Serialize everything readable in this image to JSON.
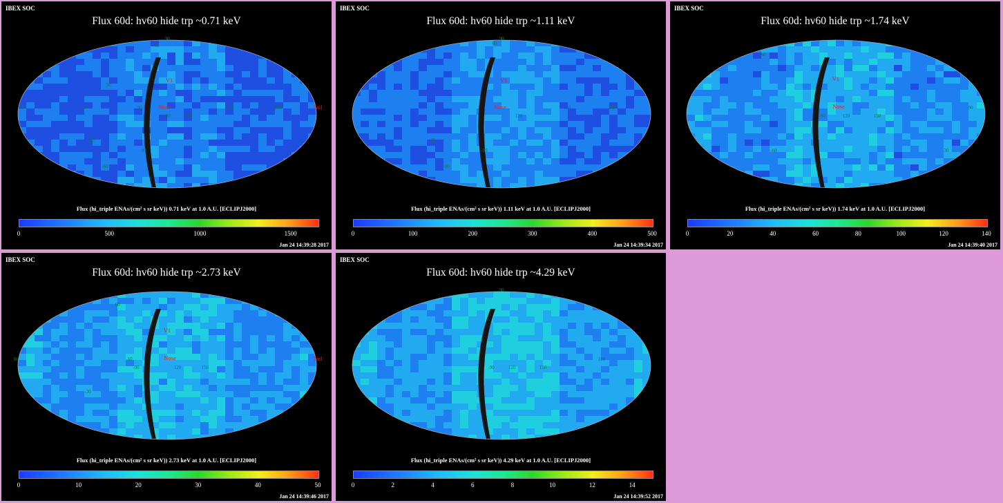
{
  "chart_data": [
    {
      "type": "heatmap",
      "header": "IBEX SOC",
      "title": "Flux   60d: hv60 hide trp ~0.71 keV",
      "colorbar_label": "Flux (hi_triple ENAs/(cm² s sr keV))  0.71 keV at 1.0 A.U. [ECLIPJ2000]",
      "colorbar_ticks": [
        "0",
        "500",
        "1000",
        "1500"
      ],
      "colorbar_range": [
        0,
        1650
      ],
      "map_labels": [
        "30",
        "60",
        "90",
        "V1",
        "Nose",
        "Tail",
        "-30",
        "-90",
        "-60",
        "30",
        "60",
        "90",
        "120",
        "150",
        "180",
        "-90"
      ],
      "timestamp": "Jan 24 14:39:28 2017"
    },
    {
      "type": "heatmap",
      "header": "IBEX SOC",
      "title": "Flux   60d: hv60 hide trp ~1.11 keV",
      "colorbar_label": "Flux (hi_triple ENAs/(cm² s sr keV))  1.11 keV at 1.0 A.U. [ECLIPJ2000]",
      "colorbar_ticks": [
        "0",
        "100",
        "200",
        "300",
        "400",
        "500"
      ],
      "colorbar_range": [
        0,
        500
      ],
      "map_labels": [
        "60",
        "90",
        "V1",
        "Nose",
        "-30",
        "-90",
        "-60",
        "120",
        "150",
        "180"
      ],
      "timestamp": "Jan 24 14:39:34 2017"
    },
    {
      "type": "heatmap",
      "header": "IBEX SOC",
      "title": "Flux   60d: hv60 hide trp ~1.74 keV",
      "colorbar_label": "Flux (hi_triple ENAs/(cm² s sr keV))  1.74 keV at 1.0 A.U. [ECLIPJ2000]",
      "colorbar_ticks": [
        "0",
        "20",
        "40",
        "60",
        "80",
        "100",
        "120",
        "140"
      ],
      "colorbar_range": [
        0,
        140
      ],
      "map_labels": [
        "60",
        "V1",
        "Nose",
        "-90",
        "120",
        "150",
        "90",
        "-60",
        "30"
      ],
      "timestamp": "Jan 24 14:39:40 2017"
    },
    {
      "type": "heatmap",
      "header": "IBEX SOC",
      "title": "Flux   60d: hv60 hide trp ~2.73 keV",
      "colorbar_label": "Flux (hi_triple ENAs/(cm² s sr keV))  2.73 keV at 1.0 A.U. [ECLIPJ2000]",
      "colorbar_ticks": [
        "0",
        "10",
        "20",
        "30",
        "40",
        "50"
      ],
      "colorbar_range": [
        0,
        50
      ],
      "map_labels": [
        "60",
        "V1",
        "Nose",
        "Tail",
        "-90",
        "-60",
        "120",
        "150",
        "30",
        "-30"
      ],
      "timestamp": "Jan 24 14:39:46 2017"
    },
    {
      "type": "heatmap",
      "header": "IBEX SOC",
      "title": "Flux   60d: hv60 hide trp ~4.29 keV",
      "colorbar_label": "Flux (hi_triple ENAs/(cm² s sr keV))  4.29 keV at 1.0 A.U. [ECLIPJ2000]",
      "colorbar_ticks": [
        "0",
        "2",
        "4",
        "6",
        "8",
        "10",
        "12",
        "14"
      ],
      "colorbar_range": [
        0,
        15
      ],
      "map_labels": [
        "90",
        "-90",
        "120",
        "150",
        "180"
      ],
      "timestamp": "Jan 24 14:39:52 2017"
    }
  ],
  "palette": {
    "background": "#dd99d8",
    "panel": "#000000",
    "map_colors": [
      "#1f4fe0",
      "#1e7ff0",
      "#22aaf0",
      "#1fcfe0",
      "#1ee0a8"
    ]
  }
}
